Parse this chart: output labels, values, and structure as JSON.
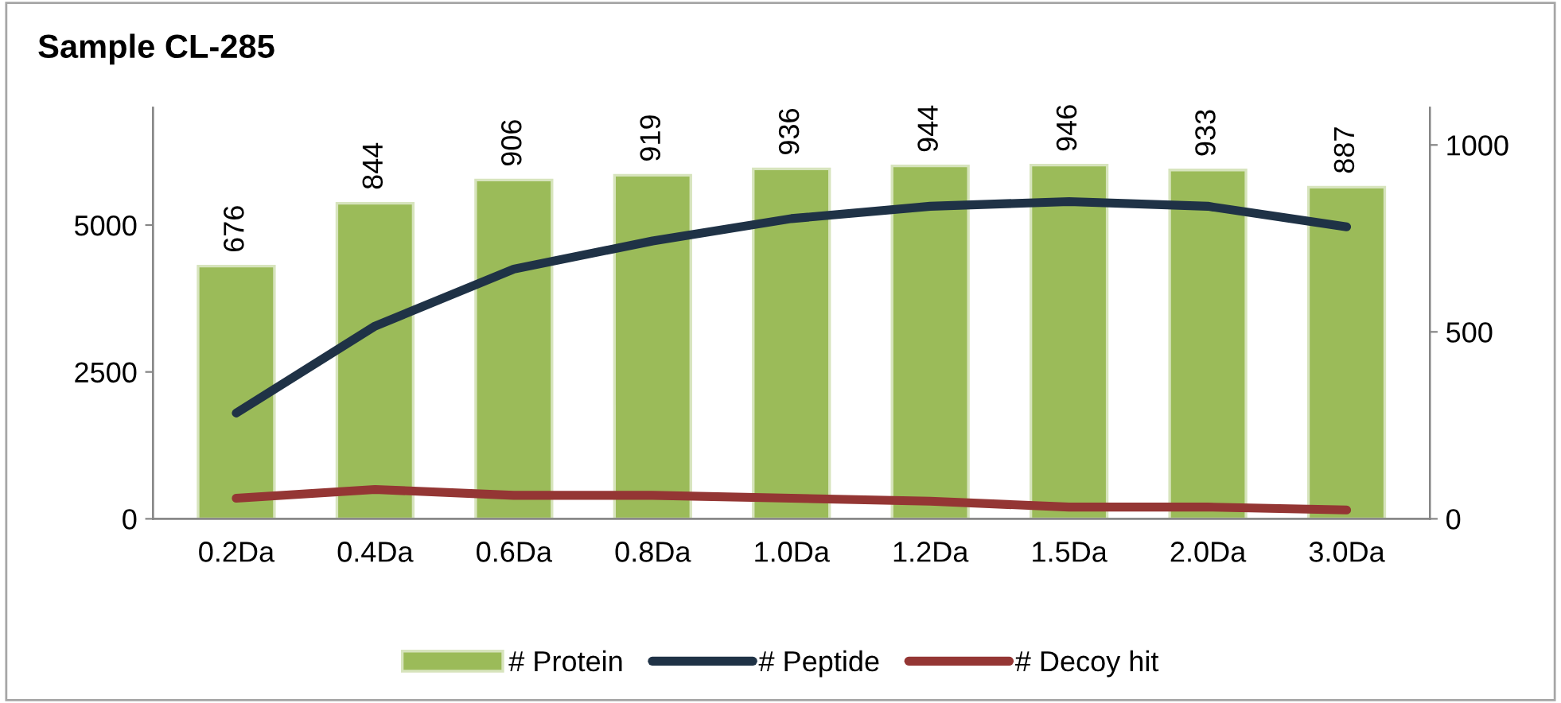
{
  "chart_data": {
    "type": "bar",
    "title": "Sample CL-285",
    "categories": [
      "0.2Da",
      "0.4Da",
      "0.6Da",
      "0.8Da",
      "1.0Da",
      "1.2Da",
      "1.5Da",
      "2.0Da",
      "3.0Da"
    ],
    "series": [
      {
        "name": "# Protein",
        "axis": "y2",
        "color": "#9bbb59",
        "values": [
          676,
          844,
          906,
          919,
          936,
          944,
          946,
          933,
          887
        ],
        "value_labels": [
          "676",
          "844",
          "906",
          "919",
          "936",
          "944",
          "946",
          "933",
          "887"
        ]
      },
      {
        "name": "# Peptide",
        "type": "line",
        "color": "#1f3246",
        "values": [
          1800,
          3280,
          4250,
          4730,
          5110,
          5320,
          5400,
          5320,
          4970
        ]
      },
      {
        "name": "# Decoy hit",
        "type": "line",
        "color": "#943634",
        "values": [
          350,
          500,
          400,
          400,
          350,
          300,
          200,
          200,
          150
        ]
      }
    ],
    "ylim": [
      0,
      7000
    ],
    "yticks": [
      0,
      2500,
      5000
    ],
    "y2lim": [
      0,
      1100
    ],
    "y2ticks": [
      0,
      500,
      1000
    ],
    "grid": false,
    "legend": "bottom",
    "marker": "none",
    "line_style": "solid"
  }
}
